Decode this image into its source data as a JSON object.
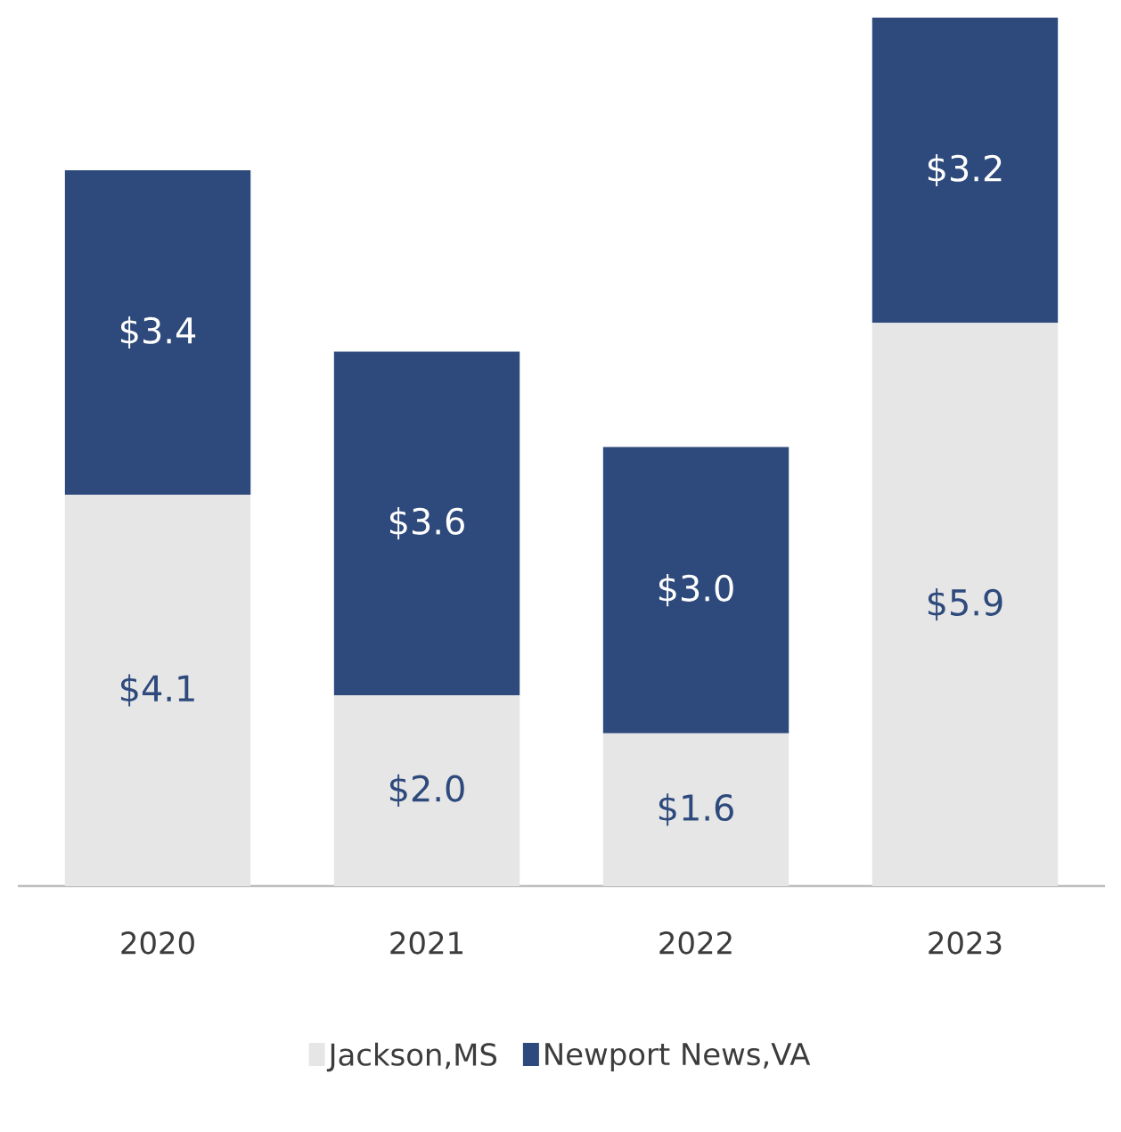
{
  "chart_data": {
    "type": "bar",
    "stacked": true,
    "categories": [
      "2020",
      "2021",
      "2022",
      "2023"
    ],
    "series": [
      {
        "name": "Jackson,MS",
        "color": "#e6e6e6",
        "values": [
          4.1,
          2.0,
          1.6,
          5.9
        ],
        "value_labels": [
          "$4.1",
          "$2.0",
          "$1.6",
          "$5.9"
        ]
      },
      {
        "name": "Newport News,VA",
        "color": "#2e4a7c",
        "values": [
          3.4,
          3.6,
          3.0,
          3.2
        ],
        "value_labels": [
          "$3.4",
          "$3.6",
          "$3.0",
          "$3.2"
        ]
      }
    ],
    "legend": "bottom"
  }
}
